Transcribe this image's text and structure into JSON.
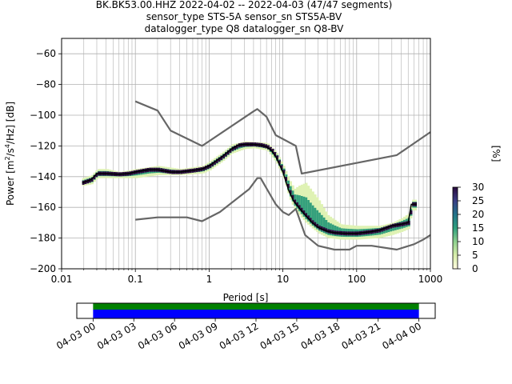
{
  "chart_data": [
    {
      "type": "heatmap",
      "title_lines": [
        "BK.BK53.00.HHZ   2022-04-02 -- 2022-04-03  (47/47 segments)",
        "sensor_type STS-5A sensor_sn STS5A-BV",
        "datalogger_type Q8 datalogger_sn Q8-BV"
      ],
      "xlabel": "Period [s]",
      "ylabel_parts": [
        "Power [m",
        "2",
        "/s",
        "4",
        "/Hz] [dB]"
      ],
      "x_scale": "log",
      "xlim": [
        0.01,
        1000
      ],
      "ylim": [
        -200,
        -50
      ],
      "x_tick_labels": [
        "0.01",
        "0.1",
        "1",
        "10",
        "100",
        "1000"
      ],
      "x_tick_values": [
        0.01,
        0.1,
        1,
        10,
        100,
        1000
      ],
      "y_tick_values": [
        -200,
        -180,
        -160,
        -140,
        -120,
        -100,
        -80,
        -60
      ],
      "y_tick_labels": [
        "−200",
        "−180",
        "−160",
        "−140",
        "−120",
        "−100",
        "−80",
        "−60"
      ],
      "grid": true,
      "colorbar": {
        "label": "[%]",
        "ticks": [
          0,
          5,
          10,
          15,
          20,
          25,
          30
        ],
        "tick_labels": [
          "0",
          "5",
          "10",
          "15",
          "20",
          "25",
          "30"
        ],
        "range": [
          0,
          30
        ],
        "stops": [
          "#fffbe0",
          "#d8eeab",
          "#8fd18f",
          "#2fa07e",
          "#23738a",
          "#3a3f86",
          "#2a0a3d"
        ]
      },
      "colors": {
        "noise_model": "#666666",
        "median": "#000000",
        "density_low": "#dff2b4",
        "density_mid": "#34a07c",
        "density_high": "#2a0a3d"
      },
      "noise_models": [
        {
          "role": "upper",
          "points": [
            [
              0.1,
              -91
            ],
            [
              0.2,
              -97
            ],
            [
              0.3,
              -110
            ],
            [
              0.8,
              -120
            ],
            [
              4,
              -97.5
            ],
            [
              4.5,
              -96
            ],
            [
              6,
              -101
            ],
            [
              8,
              -113
            ],
            [
              15,
              -120
            ],
            [
              18,
              -138
            ],
            [
              350,
              -126
            ],
            [
              1000,
              -111
            ]
          ]
        },
        {
          "role": "lower",
          "points": [
            [
              0.1,
              -168
            ],
            [
              0.2,
              -166.5
            ],
            [
              0.5,
              -166.5
            ],
            [
              0.8,
              -169
            ],
            [
              1.4,
              -163
            ],
            [
              3.5,
              -148
            ],
            [
              4.5,
              -141
            ],
            [
              5,
              -141
            ],
            [
              8,
              -158
            ],
            [
              10,
              -163
            ],
            [
              12,
              -165
            ],
            [
              15,
              -161
            ],
            [
              20,
              -178
            ],
            [
              30,
              -185
            ],
            [
              50,
              -187.5
            ],
            [
              80,
              -187.5
            ],
            [
              100,
              -185
            ],
            [
              160,
              -185
            ],
            [
              350,
              -187.5
            ],
            [
              600,
              -184
            ],
            [
              800,
              -181
            ],
            [
              1000,
              -178
            ]
          ]
        }
      ],
      "median": [
        [
          0.019,
          -144
        ],
        [
          0.022,
          -143
        ],
        [
          0.025,
          -142
        ],
        [
          0.03,
          -138
        ],
        [
          0.04,
          -138
        ],
        [
          0.06,
          -138.5
        ],
        [
          0.08,
          -138
        ],
        [
          0.1,
          -137
        ],
        [
          0.15,
          -135.5
        ],
        [
          0.2,
          -135.5
        ],
        [
          0.3,
          -137
        ],
        [
          0.4,
          -137
        ],
        [
          0.6,
          -136
        ],
        [
          0.8,
          -135
        ],
        [
          1,
          -133
        ],
        [
          1.5,
          -127
        ],
        [
          2,
          -122
        ],
        [
          2.5,
          -119.5
        ],
        [
          3,
          -119
        ],
        [
          4,
          -119
        ],
        [
          5,
          -119.5
        ],
        [
          6,
          -120.5
        ],
        [
          7,
          -123
        ],
        [
          8,
          -127
        ],
        [
          10,
          -137
        ],
        [
          12,
          -149
        ],
        [
          14,
          -156
        ],
        [
          17,
          -161
        ],
        [
          20,
          -165
        ],
        [
          25,
          -170
        ],
        [
          30,
          -173
        ],
        [
          40,
          -175.5
        ],
        [
          50,
          -176.5
        ],
        [
          70,
          -177
        ],
        [
          100,
          -177
        ],
        [
          150,
          -176
        ],
        [
          200,
          -175
        ],
        [
          300,
          -172
        ],
        [
          400,
          -171
        ],
        [
          500,
          -170
        ],
        [
          550,
          -158
        ],
        [
          650,
          -158
        ]
      ],
      "density_upper": [
        [
          0.019,
          -141
        ],
        [
          0.025,
          -139
        ],
        [
          0.03,
          -135
        ],
        [
          0.04,
          -135
        ],
        [
          0.06,
          -137
        ],
        [
          0.1,
          -135
        ],
        [
          0.2,
          -133
        ],
        [
          0.4,
          -135
        ],
        [
          0.8,
          -133
        ],
        [
          1,
          -130
        ],
        [
          1.5,
          -124
        ],
        [
          2,
          -119
        ],
        [
          3,
          -117
        ],
        [
          4,
          -117.5
        ],
        [
          6,
          -118
        ],
        [
          8,
          -124
        ],
        [
          10,
          -133
        ],
        [
          12,
          -142
        ],
        [
          14,
          -148
        ],
        [
          16,
          -146
        ],
        [
          20,
          -144
        ],
        [
          30,
          -155
        ],
        [
          40,
          -165
        ],
        [
          60,
          -171
        ],
        [
          100,
          -172
        ],
        [
          200,
          -172
        ],
        [
          300,
          -170
        ],
        [
          400,
          -167
        ],
        [
          500,
          -164
        ],
        [
          550,
          -155
        ],
        [
          650,
          -155
        ]
      ],
      "density_lower": [
        [
          0.019,
          -146
        ],
        [
          0.025,
          -145
        ],
        [
          0.03,
          -141
        ],
        [
          0.06,
          -141
        ],
        [
          0.1,
          -141
        ],
        [
          0.2,
          -139
        ],
        [
          0.4,
          -139
        ],
        [
          0.8,
          -138
        ],
        [
          1,
          -136
        ],
        [
          1.5,
          -130
        ],
        [
          2,
          -125
        ],
        [
          3,
          -122
        ],
        [
          4,
          -121.5
        ],
        [
          6,
          -123
        ],
        [
          8,
          -131
        ],
        [
          10,
          -141
        ],
        [
          12,
          -154
        ],
        [
          14,
          -161
        ],
        [
          17,
          -166
        ],
        [
          20,
          -170
        ],
        [
          25,
          -174
        ],
        [
          30,
          -177
        ],
        [
          40,
          -180
        ],
        [
          60,
          -181
        ],
        [
          100,
          -181
        ],
        [
          200,
          -180
        ],
        [
          300,
          -178
        ],
        [
          400,
          -176
        ],
        [
          500,
          -174
        ],
        [
          550,
          -162
        ],
        [
          650,
          -162
        ]
      ]
    },
    {
      "type": "timeline",
      "x_tick_labels": [
        "04-03 00",
        "04-03 03",
        "04-03 06",
        "04-03 09",
        "04-03 12",
        "04-03 15",
        "04-03 18",
        "04-03 21",
        "04-04 00"
      ],
      "x_tick_hours": [
        0,
        3,
        6,
        9,
        12,
        15,
        18,
        21,
        24
      ],
      "xlim_hours": [
        -1.2,
        25.2
      ],
      "coverage_hours": [
        0,
        24
      ],
      "bars": [
        {
          "role": "coverage",
          "color": "#008000"
        },
        {
          "role": "psd_segments",
          "color": "#0000ff"
        }
      ]
    }
  ]
}
